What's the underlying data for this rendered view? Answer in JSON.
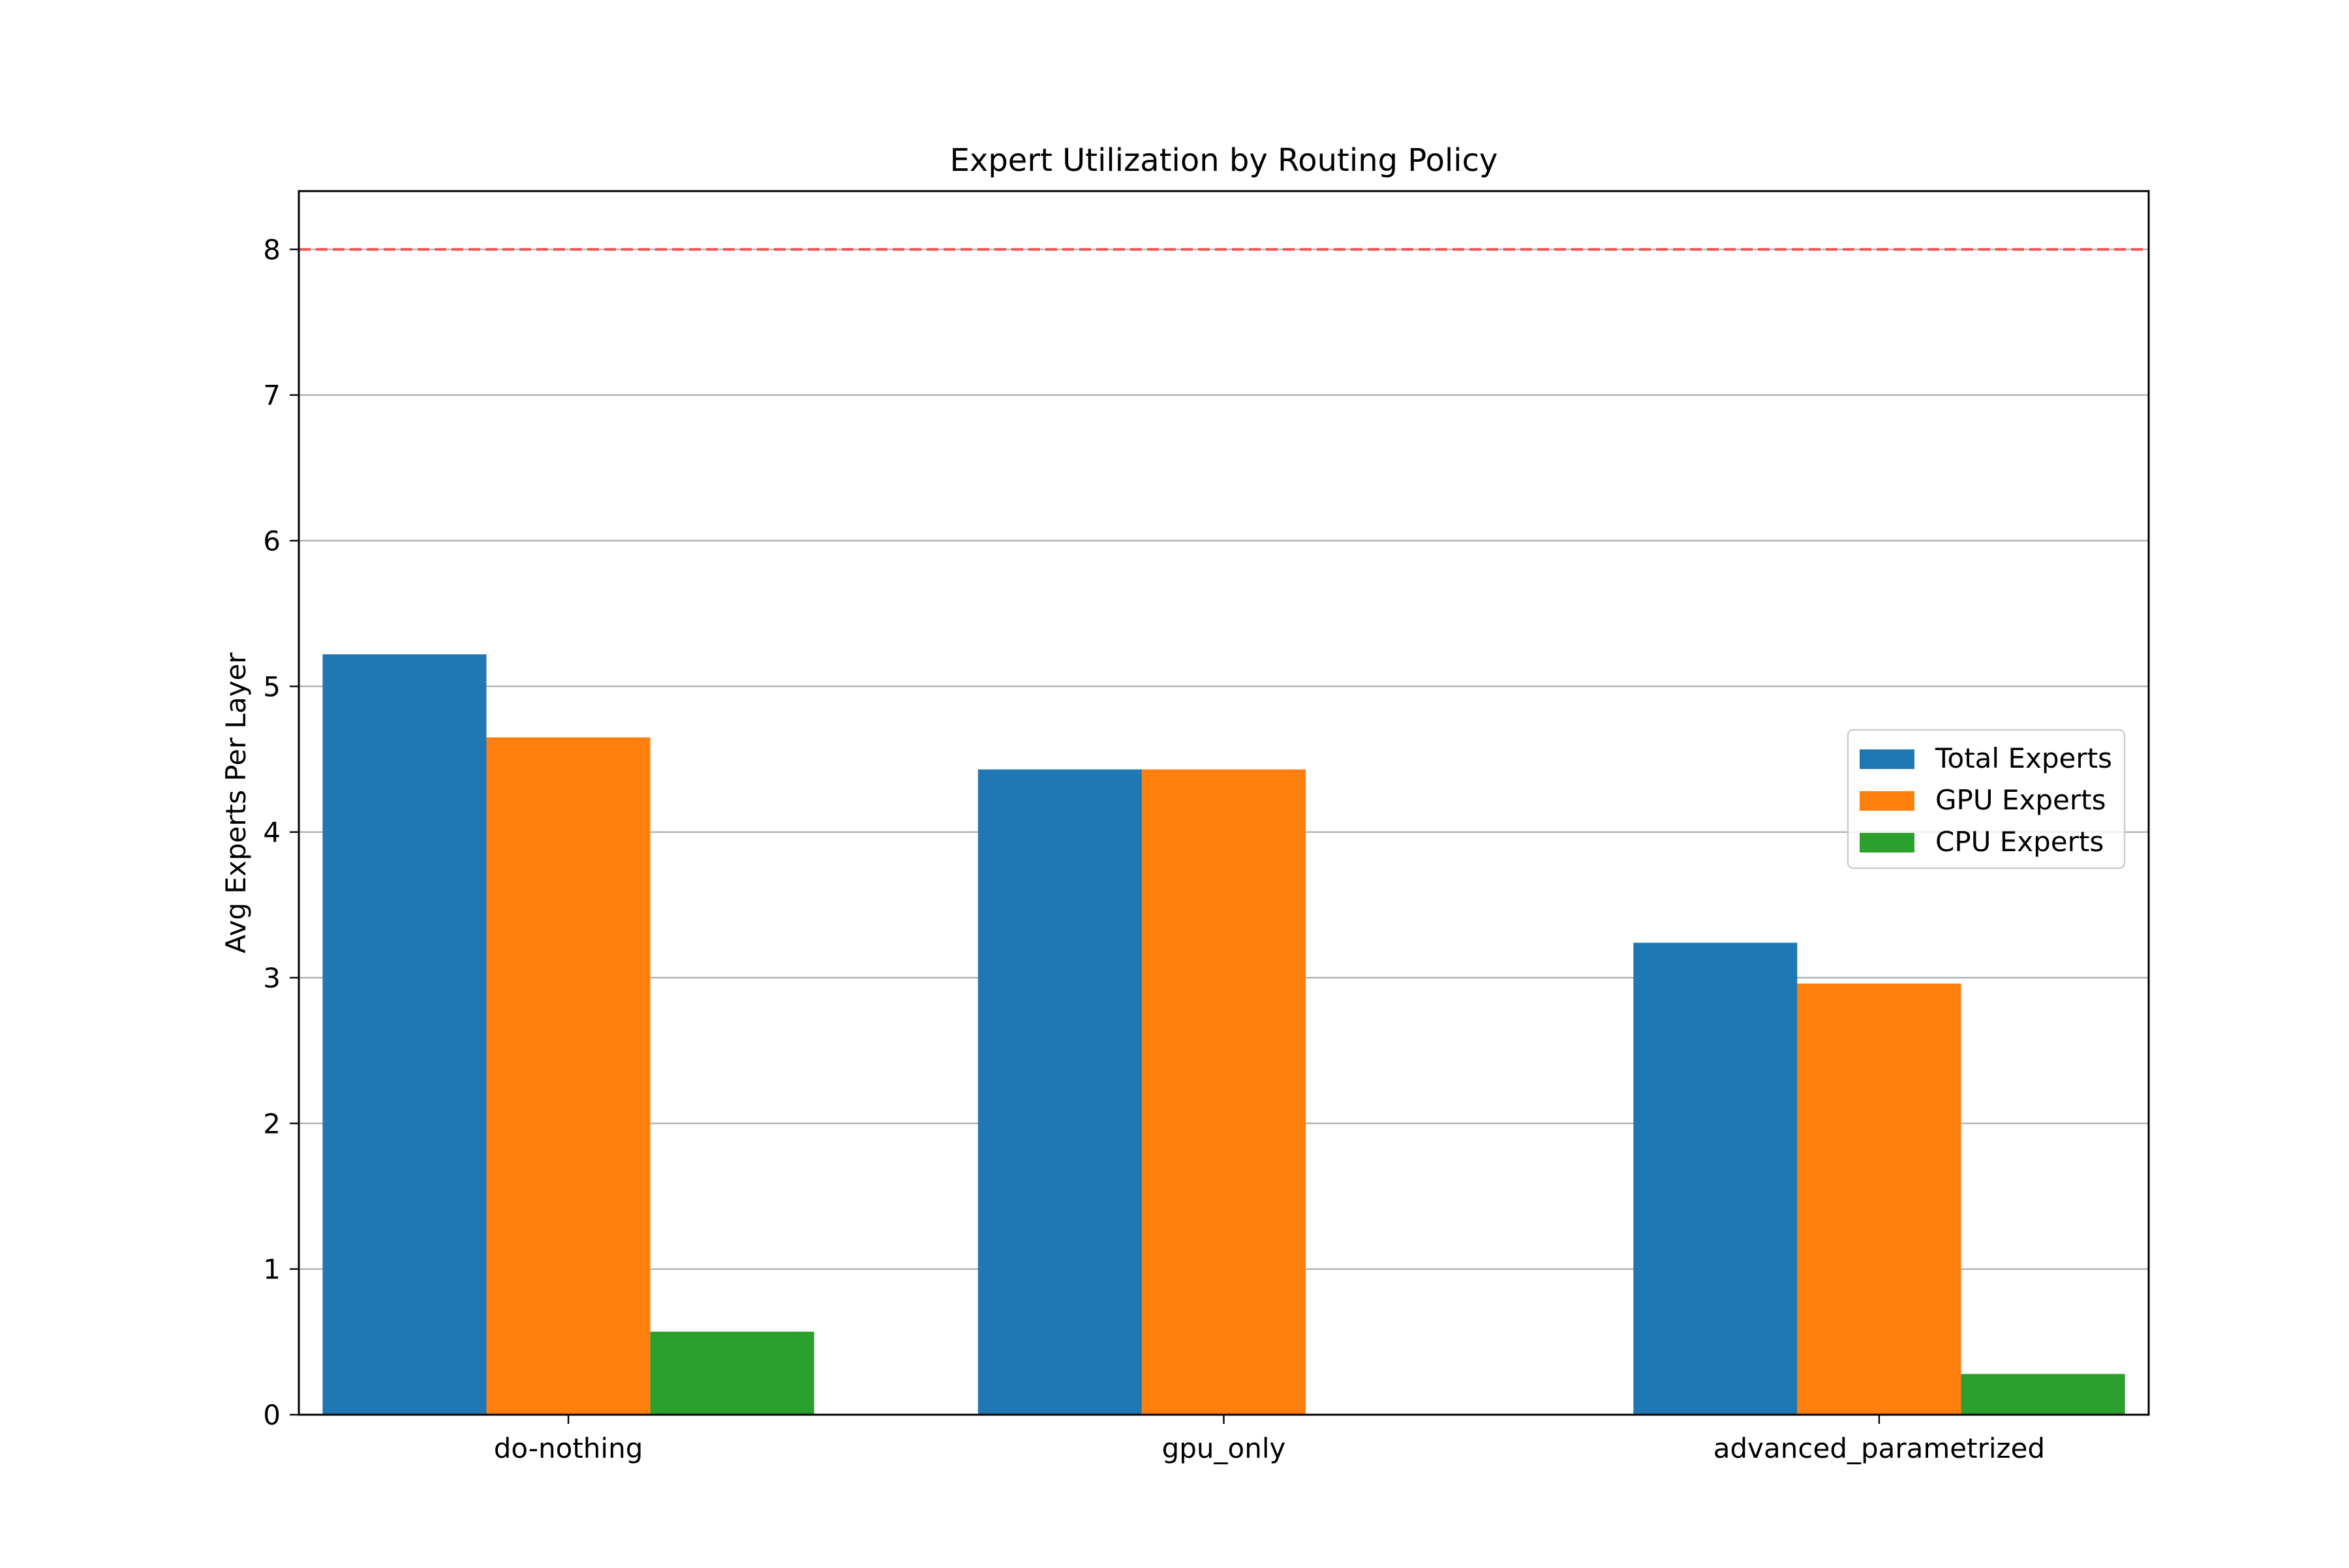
{
  "chart_data": {
    "type": "bar",
    "title": "Expert Utilization by Routing Policy",
    "xlabel": "",
    "ylabel": "Avg Experts Per Layer",
    "categories": [
      "do-nothing",
      "gpu_only",
      "advanced_parametrized"
    ],
    "series": [
      {
        "name": "Total Experts",
        "color": "#1f77b4",
        "values": [
          5.22,
          4.43,
          3.24
        ]
      },
      {
        "name": "GPU Experts",
        "color": "#ff7f0e",
        "values": [
          4.65,
          4.43,
          2.96
        ]
      },
      {
        "name": "CPU Experts",
        "color": "#2ca02c",
        "values": [
          0.57,
          0.0,
          0.28
        ]
      }
    ],
    "ylim": [
      0,
      8.4
    ],
    "yticks": [
      0,
      1,
      2,
      3,
      4,
      5,
      6,
      7,
      8
    ],
    "grid": "y",
    "reference_line": {
      "y": 8,
      "color": "#ef5350",
      "style": "dashed"
    },
    "legend": "center-right"
  }
}
